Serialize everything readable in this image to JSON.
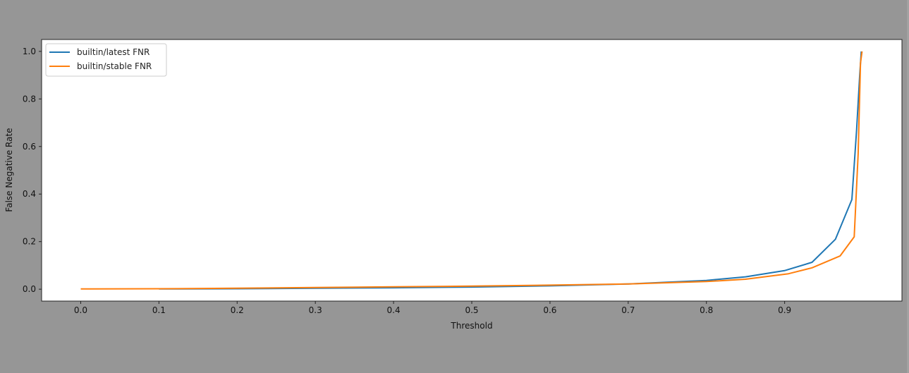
{
  "chart_data": {
    "type": "line",
    "title": "",
    "xlabel": "Threshold",
    "ylabel": "False Negative Rate",
    "xlim": [
      -0.05,
      1.05
    ],
    "ylim": [
      -0.05,
      1.05
    ],
    "xticks": [
      "0.0",
      "0.1",
      "0.2",
      "0.3",
      "0.4",
      "0.5",
      "0.6",
      "0.7",
      "0.8",
      "0.9"
    ],
    "yticks": [
      "0.0",
      "0.2",
      "0.4",
      "0.6",
      "0.8",
      "1.0"
    ],
    "grid": false,
    "legend_position": "top-left",
    "series": [
      {
        "name": "builtin/latest FNR",
        "color": "#1f77b4",
        "x": [
          0.1,
          0.2,
          0.3,
          0.4,
          0.5,
          0.6,
          0.7,
          0.8,
          0.85,
          0.9,
          0.935,
          0.965,
          0.986,
          0.992,
          0.996,
          0.998
        ],
        "y": [
          0.001,
          0.002,
          0.004,
          0.006,
          0.009,
          0.014,
          0.022,
          0.037,
          0.052,
          0.078,
          0.113,
          0.21,
          0.377,
          0.67,
          0.9,
          1.0
        ]
      },
      {
        "name": "builtin/stable FNR",
        "color": "#ff7f0e",
        "x": [
          0.0,
          0.1,
          0.2,
          0.3,
          0.4,
          0.5,
          0.6,
          0.7,
          0.8,
          0.85,
          0.905,
          0.935,
          0.971,
          0.989,
          0.994,
          0.997,
          0.999
        ],
        "y": [
          0.001,
          0.002,
          0.004,
          0.007,
          0.01,
          0.013,
          0.017,
          0.022,
          0.032,
          0.042,
          0.065,
          0.09,
          0.14,
          0.22,
          0.57,
          0.95,
          1.0
        ]
      }
    ]
  }
}
